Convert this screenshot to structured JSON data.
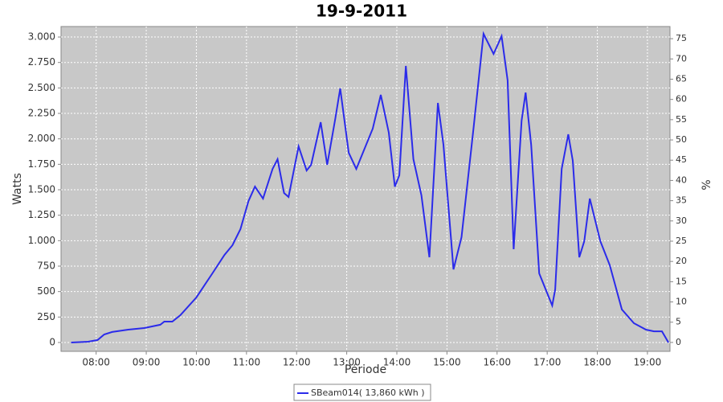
{
  "chart_data": {
    "type": "line",
    "title": "19-9-2011",
    "x_label": "Période",
    "y_label": "Watts",
    "y2_label": "%",
    "xlim": [
      7.3,
      19.45
    ],
    "xticks": [
      {
        "value": 8,
        "label": "08:00"
      },
      {
        "value": 9,
        "label": "09:00"
      },
      {
        "value": 10,
        "label": "10:00"
      },
      {
        "value": 11,
        "label": "11:00"
      },
      {
        "value": 12,
        "label": "12:00"
      },
      {
        "value": 13,
        "label": "13:00"
      },
      {
        "value": 14,
        "label": "14:00"
      },
      {
        "value": 15,
        "label": "15:00"
      },
      {
        "value": 16,
        "label": "16:00"
      },
      {
        "value": 17,
        "label": "17:00"
      },
      {
        "value": 18,
        "label": "18:00"
      },
      {
        "value": 19,
        "label": "19:00"
      }
    ],
    "ylim": [
      -87,
      3103
    ],
    "yticks": [
      0,
      250,
      500,
      750,
      {
        "value": 1000,
        "label": "1.000"
      },
      {
        "value": 1250,
        "label": "1.250"
      },
      {
        "value": 1500,
        "label": "1.500"
      },
      {
        "value": 1750,
        "label": "1.750"
      },
      {
        "value": 2000,
        "label": "2.000"
      },
      {
        "value": 2250,
        "label": "2.250"
      },
      {
        "value": 2500,
        "label": "2.500"
      },
      {
        "value": 2750,
        "label": "2.750"
      },
      {
        "value": 3000,
        "label": "3.000"
      }
    ],
    "y2lim": [
      -2.2,
      78
    ],
    "y2ticks": [
      0,
      5,
      10,
      15,
      20,
      25,
      30,
      35,
      40,
      45,
      50,
      55,
      60,
      65,
      70,
      75
    ],
    "grid": true,
    "x": [
      7.5,
      7.84,
      8.03,
      8.16,
      8.32,
      8.64,
      8.96,
      9.28,
      9.36,
      9.52,
      9.68,
      10.0,
      10.32,
      10.56,
      10.72,
      10.88,
      11.04,
      11.17,
      11.33,
      11.52,
      11.62,
      11.75,
      11.84,
      12.04,
      12.2,
      12.29,
      12.48,
      12.61,
      12.77,
      12.87,
      13.04,
      13.19,
      13.52,
      13.68,
      13.84,
      13.96,
      14.05,
      14.18,
      14.33,
      14.49,
      14.65,
      14.82,
      14.93,
      15.13,
      15.29,
      15.53,
      15.73,
      15.93,
      16.09,
      16.21,
      16.33,
      16.49,
      16.57,
      16.68,
      16.84,
      17.1,
      17.16,
      17.29,
      17.42,
      17.51,
      17.64,
      17.74,
      17.85,
      18.06,
      18.25,
      18.49,
      18.73,
      18.97,
      19.13,
      19.29,
      19.42
    ],
    "series": [
      {
        "name": "SBeam014( 13,860 kWh )",
        "color": "#2b2bea",
        "values": [
          0,
          8,
          24,
          79,
          103,
          126,
          142,
          174,
          205,
          205,
          268,
          442,
          679,
          860,
          955,
          1113,
          1389,
          1531,
          1413,
          1705,
          1800,
          1468,
          1429,
          1926,
          1689,
          1745,
          2163,
          1745,
          2195,
          2495,
          1863,
          1705,
          2100,
          2432,
          2060,
          1531,
          1642,
          2716,
          1800,
          1445,
          837,
          2353,
          1942,
          718,
          1034,
          2100,
          3032,
          2834,
          3008,
          2574,
          916,
          2179,
          2455,
          1942,
          679,
          363,
          521,
          1705,
          2045,
          1784,
          837,
          995,
          1413,
          995,
          758,
          324,
          189,
          126,
          110,
          110,
          0
        ]
      }
    ]
  }
}
